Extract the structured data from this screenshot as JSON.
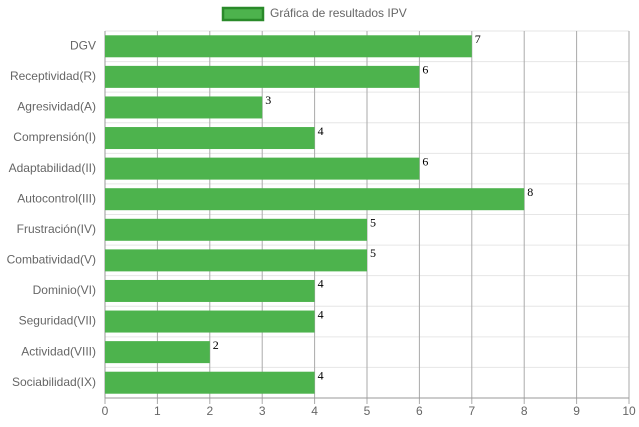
{
  "chart_data": {
    "type": "bar",
    "orientation": "horizontal",
    "categories": [
      "DGV",
      "Receptividad(R)",
      "Agresividad(A)",
      "Comprensión(I)",
      "Adaptabilidad(II)",
      "Autocontrol(III)",
      "Frustración(IV)",
      "Combatividad(V)",
      "Dominio(VI)",
      "Seguridad(VII)",
      "Actividad(VIII)",
      "Sociabilidad(IX)"
    ],
    "series": [
      {
        "name": "Gráfica de resultados IPV",
        "color": "#4db34d",
        "values": [
          7,
          6,
          3,
          4,
          6,
          8,
          5,
          5,
          4,
          4,
          2,
          4
        ]
      }
    ],
    "xlim": [
      0,
      10
    ],
    "xticks": [
      0,
      1,
      2,
      3,
      4,
      5,
      6,
      7,
      8,
      9,
      10
    ],
    "grid": true,
    "legend": "top"
  }
}
